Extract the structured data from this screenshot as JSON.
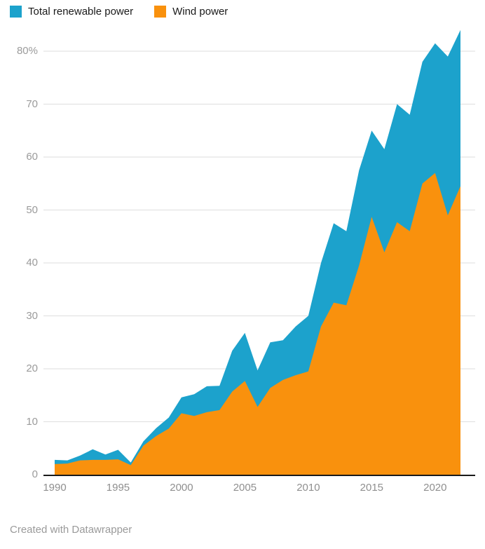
{
  "legend": {
    "position": "top-left",
    "items": [
      {
        "label": "Total renewable power",
        "color": "#1CA2CC"
      },
      {
        "label": "Wind power",
        "color": "#F9910D"
      }
    ]
  },
  "footer": {
    "text": "Created with Datawrapper"
  },
  "chart_data": {
    "type": "area",
    "stacked": false,
    "grid": true,
    "title": "",
    "xlabel": "",
    "ylabel": "",
    "unit": "%",
    "xlim": [
      1990,
      2022
    ],
    "ylim": [
      0,
      85
    ],
    "x": [
      1990,
      1991,
      1992,
      1993,
      1994,
      1995,
      1996,
      1997,
      1998,
      1999,
      2000,
      2001,
      2002,
      2003,
      2004,
      2005,
      2006,
      2007,
      2008,
      2009,
      2010,
      2011,
      2012,
      2013,
      2014,
      2015,
      2016,
      2017,
      2018,
      2019,
      2020,
      2021,
      2022
    ],
    "series": [
      {
        "name": "Total renewable power",
        "color": "#1CA2CC",
        "values": [
          2.8,
          2.7,
          3.6,
          4.8,
          3.8,
          4.7,
          2.3,
          6.3,
          8.8,
          10.8,
          14.6,
          15.2,
          16.7,
          16.8,
          23.4,
          26.8,
          19.7,
          25.0,
          25.4,
          28.0,
          30.0,
          40.0,
          47.5,
          46.0,
          57.5,
          65.0,
          61.5,
          70.0,
          68.0,
          78.0,
          81.5,
          79.0,
          84.0
        ]
      },
      {
        "name": "Wind power",
        "color": "#F9910D",
        "values": [
          2.0,
          2.1,
          2.7,
          2.8,
          2.8,
          2.9,
          1.8,
          5.5,
          7.3,
          8.7,
          11.6,
          11.1,
          11.8,
          12.2,
          15.7,
          17.7,
          12.8,
          16.4,
          17.9,
          18.8,
          19.5,
          28.0,
          32.5,
          32.0,
          39.5,
          48.7,
          42.0,
          47.7,
          46.0,
          55.0,
          57.0,
          49.0,
          54.5
        ]
      }
    ],
    "y_ticks": [
      {
        "label": "80%",
        "value": 80
      },
      {
        "label": "70",
        "value": 70
      },
      {
        "label": "60",
        "value": 60
      },
      {
        "label": "50",
        "value": 50
      },
      {
        "label": "40",
        "value": 40
      },
      {
        "label": "30",
        "value": 30
      },
      {
        "label": "20",
        "value": 20
      },
      {
        "label": "10",
        "value": 10
      },
      {
        "label": "0",
        "value": 0
      }
    ],
    "x_ticks": [
      {
        "label": "1990",
        "value": 1990
      },
      {
        "label": "1995",
        "value": 1995
      },
      {
        "label": "2000",
        "value": 2000
      },
      {
        "label": "2005",
        "value": 2005
      },
      {
        "label": "2010",
        "value": 2010
      },
      {
        "label": "2015",
        "value": 2015
      },
      {
        "label": "2020",
        "value": 2020
      }
    ]
  }
}
